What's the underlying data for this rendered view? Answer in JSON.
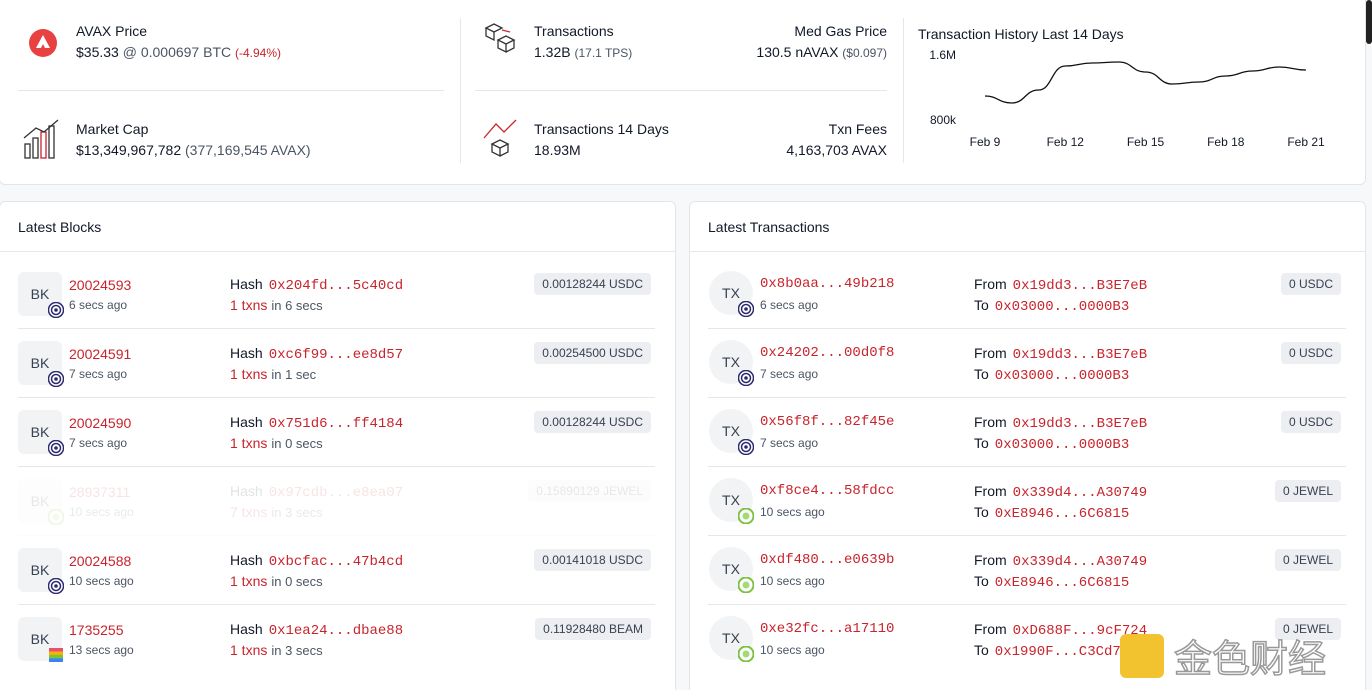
{
  "stats": {
    "avax_price": {
      "label": "AVAX Price",
      "price": "$35.33",
      "btc": "@ 0.000697 BTC",
      "change": "(-4.94%)"
    },
    "market_cap": {
      "label": "Market Cap",
      "value": "$13,349,967,782",
      "avax": "(377,169,545 AVAX)"
    },
    "transactions": {
      "label": "Transactions",
      "value": "1.32B",
      "tps": "(17.1 TPS)"
    },
    "gas": {
      "label": "Med Gas Price",
      "value": "130.5 nAVAX",
      "usd": "($0.097)"
    },
    "tx14": {
      "label": "Transactions 14 Days",
      "value": "18.93M"
    },
    "fees": {
      "label": "Txn Fees",
      "value": "4,163,703 AVAX"
    }
  },
  "chart_data": {
    "type": "line",
    "title": "Transaction History Last 14 Days",
    "categories": [
      "Feb 9",
      null,
      null,
      "Feb 12",
      null,
      null,
      "Feb 15",
      null,
      null,
      "Feb 18",
      null,
      null,
      "Feb 21"
    ],
    "values": [
      1095000,
      1009000,
      1169000,
      1465000,
      1502000,
      1514000,
      1391000,
      1243000,
      1268000,
      1342000,
      1403000,
      1452000,
      1415000
    ],
    "color": "#111111",
    "ylim": [
      800000,
      1600000
    ],
    "yticks": [
      {
        "value": 800000,
        "label": "800k"
      },
      {
        "value": 1600000,
        "label": "1.6M"
      }
    ]
  },
  "blocks": {
    "title": "Latest Blocks",
    "rows": [
      {
        "badge": "BK",
        "number": "20024593",
        "age": "6 secs ago",
        "hash_label": "Hash",
        "hash": "0x204fd...5c40cd",
        "txns": "1 txns",
        "duration": "in 6 secs",
        "fee": "0.00128244 USDC"
      },
      {
        "badge": "BK",
        "number": "20024591",
        "age": "7 secs ago",
        "hash_label": "Hash",
        "hash": "0xc6f99...ee8d57",
        "txns": "1 txns",
        "duration": "in 1 sec",
        "fee": "0.00254500 USDC"
      },
      {
        "badge": "BK",
        "number": "20024590",
        "age": "7 secs ago",
        "hash_label": "Hash",
        "hash": "0x751d6...ff4184",
        "txns": "1 txns",
        "duration": "in 0 secs",
        "fee": "0.00128244 USDC"
      },
      {
        "badge": "BK",
        "number": "28937311",
        "age": "10 secs ago",
        "hash_label": "Hash",
        "hash": "0x97cdb...e8ea07",
        "txns": "7 txns",
        "duration": "in 3 secs",
        "fee": "0.15890129 JEWEL"
      },
      {
        "badge": "BK",
        "number": "20024588",
        "age": "10 secs ago",
        "hash_label": "Hash",
        "hash": "0xbcfac...47b4cd",
        "txns": "1 txns",
        "duration": "in 0 secs",
        "fee": "0.00141018 USDC"
      },
      {
        "badge": "BK",
        "number": "1735255",
        "age": "13 secs ago",
        "hash_label": "Hash",
        "hash": "0x1ea24...dbae88",
        "txns": "1 txns",
        "duration": "in 3 secs",
        "fee": "0.11928480 BEAM"
      }
    ]
  },
  "transactions": {
    "title": "Latest Transactions",
    "rows": [
      {
        "badge": "TX",
        "hash": "0x8b0aa...49b218",
        "age": "6 secs ago",
        "from_label": "From",
        "from": "0x19dd3...B3E7eB",
        "to_label": "To",
        "to": "0x03000...0000B3",
        "value": "0 USDC"
      },
      {
        "badge": "TX",
        "hash": "0x24202...00d0f8",
        "age": "7 secs ago",
        "from_label": "From",
        "from": "0x19dd3...B3E7eB",
        "to_label": "To",
        "to": "0x03000...0000B3",
        "value": "0 USDC"
      },
      {
        "badge": "TX",
        "hash": "0x56f8f...82f45e",
        "age": "7 secs ago",
        "from_label": "From",
        "from": "0x19dd3...B3E7eB",
        "to_label": "To",
        "to": "0x03000...0000B3",
        "value": "0 USDC"
      },
      {
        "badge": "TX",
        "hash": "0xf8ce4...58fdcc",
        "age": "10 secs ago",
        "from_label": "From",
        "from": "0x339d4...A30749",
        "to_label": "To",
        "to": "0xE8946...6C6815",
        "value": "0 JEWEL"
      },
      {
        "badge": "TX",
        "hash": "0xdf480...e0639b",
        "age": "10 secs ago",
        "from_label": "From",
        "from": "0x339d4...A30749",
        "to_label": "To",
        "to": "0xE8946...6C6815",
        "value": "0 JEWEL"
      },
      {
        "badge": "TX",
        "hash": "0xe32fc...a17110",
        "age": "10 secs ago",
        "from_label": "From",
        "from": "0xD688F...9cF724",
        "to_label": "To",
        "to": "0x1990F...C3Cd7",
        "value": "0 JEWEL"
      }
    ]
  },
  "watermark": "金色财经"
}
